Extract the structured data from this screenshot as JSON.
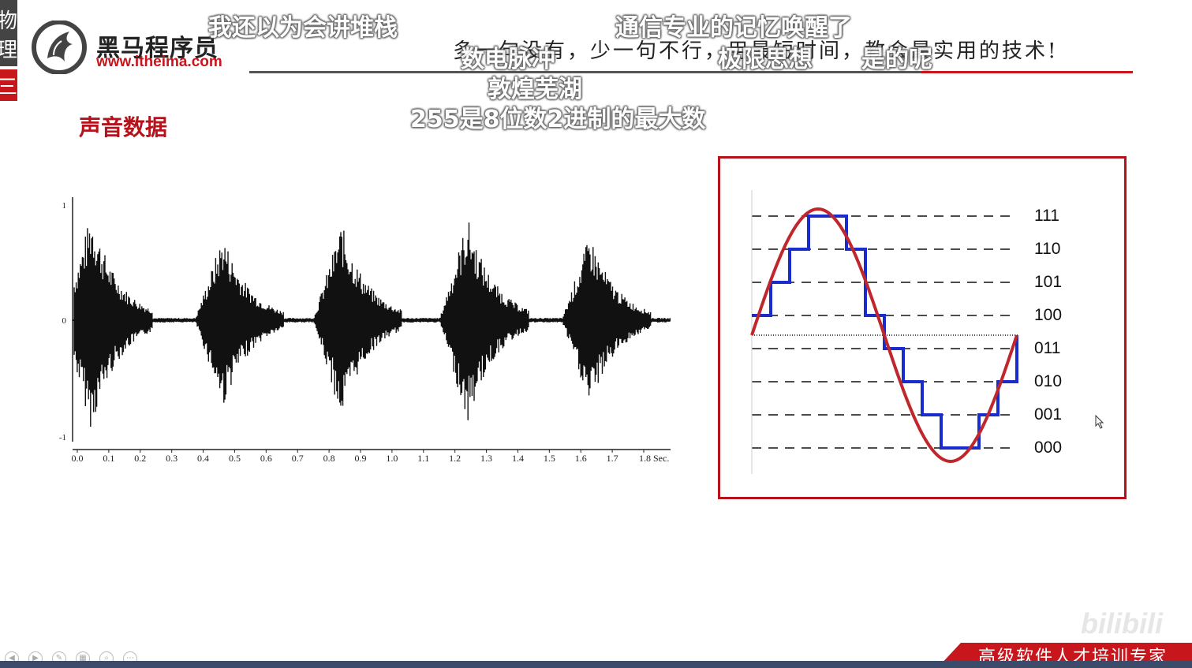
{
  "sidebar": {
    "tab_top_text": "物理",
    "tab_red_text": "三"
  },
  "brand": {
    "name": "黑马程序员",
    "url": "www.itheima.com"
  },
  "header": {
    "slogan": "多一句没有，少一句不行，用最短时间，教会最实用的技术!"
  },
  "section": {
    "title": "声音数据"
  },
  "danmaku": [
    "我还以为会讲堆栈",
    "通信专业的记忆唤醒了",
    "数电脉冲",
    "极限思想",
    "是的呢",
    "敦煌芜湖",
    "255是8位数2进制的最大数"
  ],
  "waveform": {
    "y_ticks": [
      "1",
      "0",
      "-1"
    ],
    "x_ticks": [
      "0.0",
      "0.1",
      "0.2",
      "0.3",
      "0.4",
      "0.5",
      "0.6",
      "0.7",
      "0.8",
      "0.9",
      "1.0",
      "1.1",
      "1.2",
      "1.3",
      "1.4",
      "1.5",
      "1.6",
      "1.7",
      "1.8 Sec."
    ]
  },
  "quantization": {
    "levels": [
      "111",
      "110",
      "101",
      "100",
      "011",
      "010",
      "001",
      "000"
    ],
    "colors": {
      "analog": "#c0272d",
      "digital": "#1a2ccc",
      "border": "#b5121b"
    }
  },
  "footer": {
    "tagline": "高级软件人才培训专家",
    "watermark": "bilibili"
  },
  "player": {
    "icons": [
      "prev-icon",
      "next-icon",
      "pen-icon",
      "pages-icon",
      "zoom-icon",
      "more-icon"
    ]
  }
}
